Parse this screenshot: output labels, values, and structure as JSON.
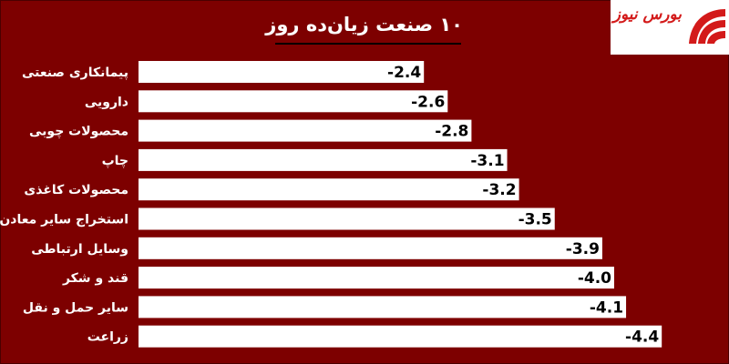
{
  "chart_data": {
    "type": "bar",
    "title": "۱۰ صنعت زیان‌ده روز",
    "categories": [
      "پیمانکاری صنعتی",
      "دارویی",
      "محصولات چوبی",
      "چاپ",
      "محصولات کاغذی",
      "استخراج سایر معادن",
      "وسایل ارتباطی",
      "قند و شکر",
      "سایر حمل و نقل",
      "زراعت"
    ],
    "values": [
      -2.4,
      -2.6,
      -2.8,
      -3.1,
      -3.2,
      -3.5,
      -3.9,
      -4.0,
      -4.1,
      -4.4
    ],
    "value_labels": [
      "-2.4",
      "-2.6",
      "-2.8",
      "-3.1",
      "-3.2",
      "-3.5",
      "-3.9",
      "-4.0",
      "-4.1",
      "-4.4"
    ],
    "orientation": "horizontal",
    "grid": false,
    "legend": false,
    "colors": {
      "background": "#7d0000",
      "bar": "#ffffff",
      "text": "#ffffff",
      "value_text": "#000000",
      "title_rule": "#000000"
    }
  },
  "logo": {
    "text": "بورس نیوز",
    "color": "#d31a1a"
  }
}
